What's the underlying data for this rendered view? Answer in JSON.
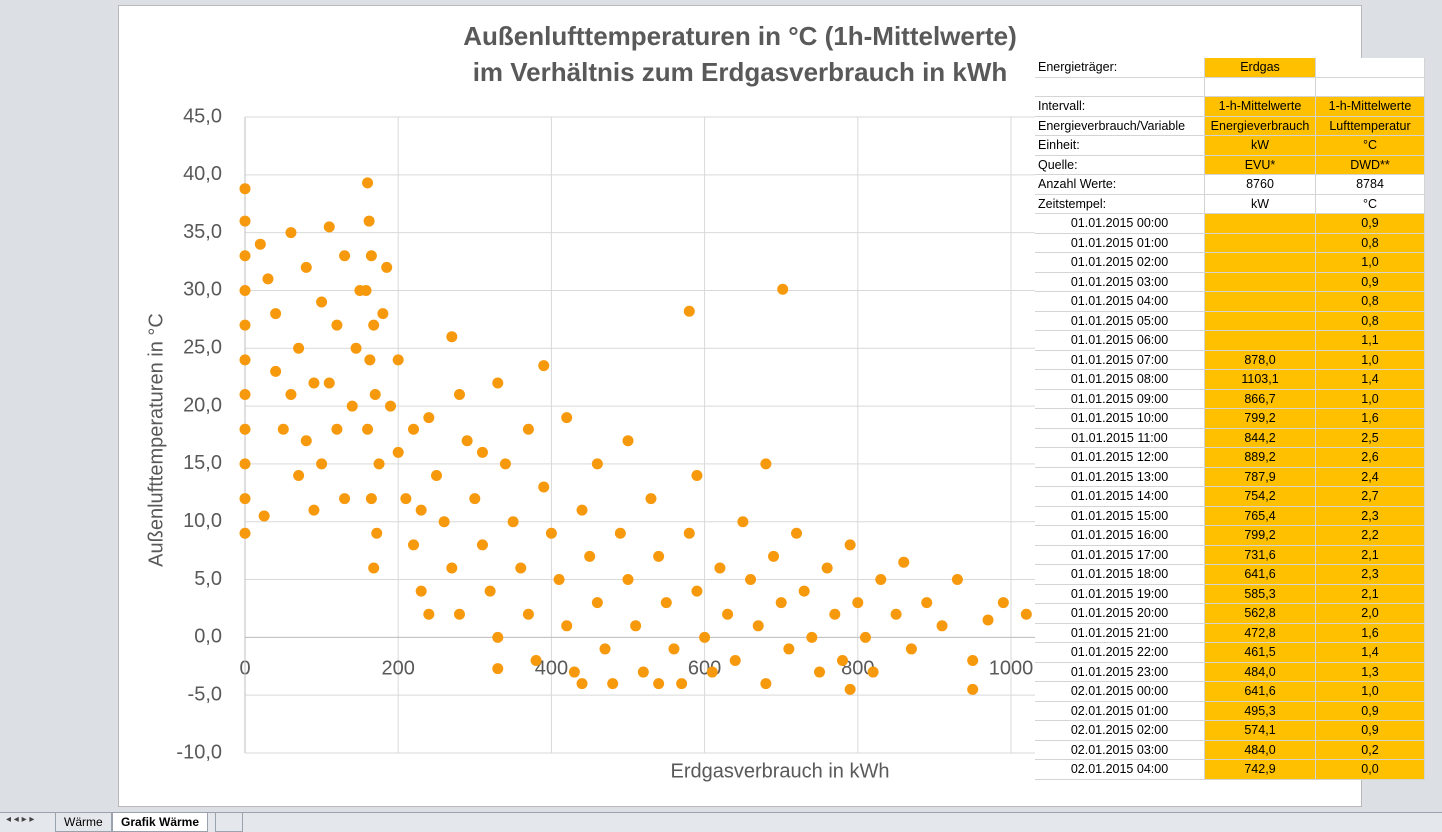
{
  "chart_data": {
    "type": "scatter",
    "title_lines": [
      "Außenlufttemperaturen  in °C (1h-Mittelwerte)",
      "im Verhältnis  zum Erdgasverbrauch in kWh"
    ],
    "x_label": "Erdgasverbrauch in kWh",
    "y_label": "Außenlufttemperaturen in °C",
    "xlim": [
      0,
      1200
    ],
    "xticks": [
      0,
      200,
      400,
      600,
      800,
      1000
    ],
    "ylim": [
      -10,
      45
    ],
    "yticks": [
      {
        "value": -10,
        "label": "-10,0"
      },
      {
        "value": -5,
        "label": "-5,0"
      },
      {
        "value": 0,
        "label": "0,0"
      },
      {
        "value": 5,
        "label": "5,0"
      },
      {
        "value": 10,
        "label": "10,0"
      },
      {
        "value": 15,
        "label": "15,0"
      },
      {
        "value": 20,
        "label": "20,0"
      },
      {
        "value": 25,
        "label": "25,0"
      },
      {
        "value": 30,
        "label": "30,0"
      },
      {
        "value": 35,
        "label": "35,0"
      },
      {
        "value": 40,
        "label": "40,0"
      },
      {
        "value": 45,
        "label": "45,0"
      }
    ],
    "grid": true,
    "x": [
      0,
      0,
      0,
      0,
      0,
      0,
      0,
      0,
      0,
      0,
      0,
      160,
      162,
      165,
      158,
      168,
      163,
      170,
      160,
      175,
      165,
      172,
      168,
      20,
      30,
      40,
      60,
      70,
      80,
      90,
      100,
      110,
      120,
      130,
      140,
      50,
      70,
      100,
      130,
      25,
      90,
      60,
      120,
      145,
      80,
      40,
      150,
      110,
      185,
      180,
      190,
      200,
      210,
      220,
      230,
      200,
      240,
      250,
      260,
      270,
      280,
      290,
      300,
      310,
      320,
      330,
      280,
      340,
      350,
      360,
      370,
      380,
      390,
      400,
      410,
      420,
      430,
      440,
      450,
      460,
      470,
      480,
      490,
      500,
      510,
      520,
      530,
      540,
      550,
      560,
      570,
      580,
      590,
      600,
      610,
      620,
      630,
      640,
      650,
      660,
      670,
      680,
      690,
      700,
      710,
      720,
      730,
      740,
      750,
      760,
      770,
      780,
      790,
      800,
      810,
      820,
      830,
      850,
      860,
      870,
      890,
      910,
      930,
      950,
      970,
      990,
      1020,
      950,
      790,
      580,
      702,
      390,
      680,
      270,
      330,
      220,
      230,
      310,
      240,
      370,
      460,
      420,
      500,
      590,
      540,
      330,
      440
    ],
    "series": [
      {
        "name": "Erdgas",
        "color": "#f7990c",
        "values": [
          38.8,
          36,
          33,
          30,
          27,
          24,
          21,
          18,
          15,
          12,
          9,
          39.3,
          36,
          33,
          30,
          27,
          24,
          21,
          18,
          15,
          12,
          9,
          6,
          34,
          31,
          28,
          35,
          25,
          32,
          22,
          29,
          35.5,
          27,
          33,
          20,
          18,
          14,
          15,
          12,
          10.5,
          11,
          21,
          18,
          25,
          17,
          23,
          30,
          22,
          32,
          28,
          20,
          16,
          12,
          8,
          4,
          24,
          19,
          14,
          10,
          6,
          2,
          17,
          12,
          8,
          4,
          0,
          21,
          15,
          10,
          6,
          2,
          -2,
          13,
          9,
          5,
          1,
          -3,
          11,
          7,
          3,
          -1,
          -4,
          9,
          5,
          1,
          -3,
          12,
          7,
          3,
          -1,
          -4,
          9,
          4,
          0,
          -3,
          6,
          2,
          -2,
          10,
          5,
          1,
          -4,
          7,
          3,
          -1,
          9,
          4,
          0,
          -3,
          6,
          2,
          -2,
          8,
          3,
          0,
          -3,
          5,
          2,
          6.5,
          -1,
          3,
          1,
          5,
          -2,
          1.5,
          3,
          2,
          -4.5,
          -4.5,
          28.2,
          30.1,
          23.5,
          15,
          26,
          22,
          18,
          11,
          16,
          2,
          18,
          15,
          19,
          17,
          14,
          -4,
          -2.7,
          -4
        ]
      }
    ]
  },
  "table": {
    "rows": [
      [
        "Energieträger:",
        "Erdgas",
        null
      ],
      [
        null,
        null,
        null
      ],
      [
        "Intervall:",
        "1-h-Mittelwerte",
        "1-h-Mittelwerte"
      ],
      [
        "Energieverbrauch/Variable",
        "Energieverbrauch",
        "Lufttemperatur"
      ],
      [
        "Einheit:",
        "kW",
        "°C"
      ],
      [
        "Quelle:",
        "EVU*",
        "DWD**"
      ],
      [
        "Anzahl Werte:",
        "8760",
        "8784"
      ],
      [
        "Zeitstempel:",
        "kW",
        "°C"
      ],
      [
        "01.01.2015 00:00",
        null,
        "0,9"
      ],
      [
        "01.01.2015 01:00",
        null,
        "0,8"
      ],
      [
        "01.01.2015 02:00",
        null,
        "1,0"
      ],
      [
        "01.01.2015 03:00",
        null,
        "0,9"
      ],
      [
        "01.01.2015 04:00",
        null,
        "0,8"
      ],
      [
        "01.01.2015 05:00",
        null,
        "0,8"
      ],
      [
        "01.01.2015 06:00",
        null,
        "1,1"
      ],
      [
        "01.01.2015 07:00",
        "878,0",
        "1,0"
      ],
      [
        "01.01.2015 08:00",
        "1103,1",
        "1,4"
      ],
      [
        "01.01.2015 09:00",
        "866,7",
        "1,0"
      ],
      [
        "01.01.2015 10:00",
        "799,2",
        "1,6"
      ],
      [
        "01.01.2015 11:00",
        "844,2",
        "2,5"
      ],
      [
        "01.01.2015 12:00",
        "889,2",
        "2,6"
      ],
      [
        "01.01.2015 13:00",
        "787,9",
        "2,4"
      ],
      [
        "01.01.2015 14:00",
        "754,2",
        "2,7"
      ],
      [
        "01.01.2015 15:00",
        "765,4",
        "2,3"
      ],
      [
        "01.01.2015 16:00",
        "799,2",
        "2,2"
      ],
      [
        "01.01.2015 17:00",
        "731,6",
        "2,1"
      ],
      [
        "01.01.2015 18:00",
        "641,6",
        "2,3"
      ],
      [
        "01.01.2015 19:00",
        "585,3",
        "2,1"
      ],
      [
        "01.01.2015 20:00",
        "562,8",
        "2,0"
      ],
      [
        "01.01.2015 21:00",
        "472,8",
        "1,6"
      ],
      [
        "01.01.2015 22:00",
        "461,5",
        "1,4"
      ],
      [
        "01.01.2015 23:00",
        "484,0",
        "1,3"
      ],
      [
        "02.01.2015 00:00",
        "641,6",
        "1,0"
      ],
      [
        "02.01.2015 01:00",
        "495,3",
        "0,9"
      ],
      [
        "02.01.2015 02:00",
        "574,1",
        "0,9"
      ],
      [
        "02.01.2015 03:00",
        "484,0",
        "0,2"
      ],
      [
        "02.01.2015 04:00",
        "742,9",
        "0,0"
      ]
    ]
  },
  "sheet_tabs": [
    "Wärme",
    "Grafik Wärme"
  ]
}
